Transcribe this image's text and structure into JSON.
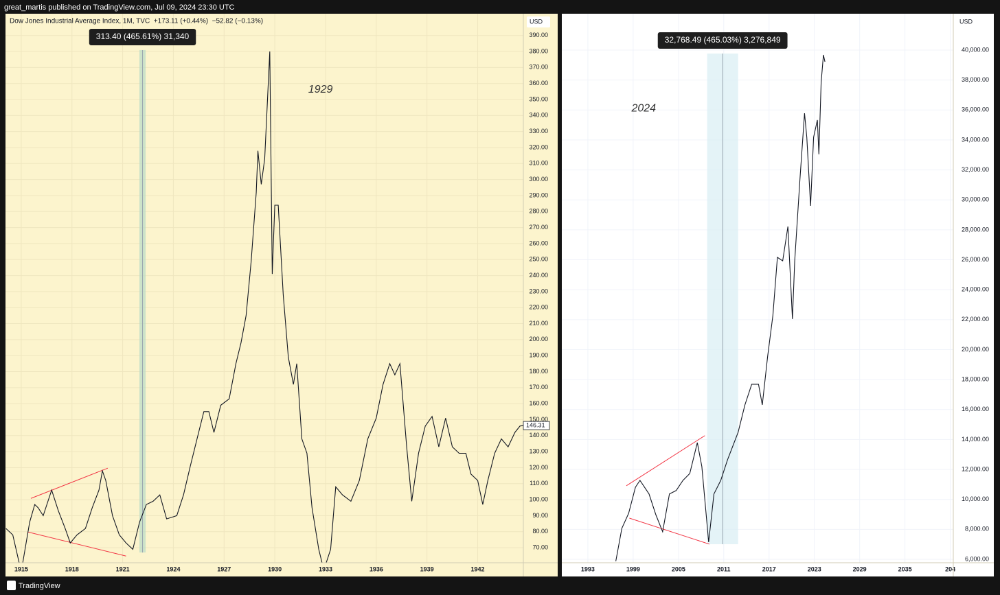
{
  "header": {
    "publisher": "great_martis published on TradingView.com, Jul 09, 2024 23:30 UTC",
    "legend": "Dow Jones Industrial Average Index, 1M, TVC  +173.11 (+0.44%)  −52.82 (−0.13%)"
  },
  "footer": {
    "brand": "TradingView"
  },
  "chart_data": [
    {
      "type": "line",
      "background": "#fcf4cd",
      "grid": true,
      "grid_color": "#efe6bf",
      "currency": "USD",
      "xlim": [
        1914.07,
        1944.7
      ],
      "ylim": [
        60.6,
        403.6
      ],
      "xticks": [
        1915,
        1918,
        1921,
        1924,
        1927,
        1930,
        1933,
        1936,
        1939,
        1942
      ],
      "yticks": [
        {
          "value": 70,
          "label": "70.00"
        },
        {
          "value": 80,
          "label": "80.00"
        },
        {
          "value": 90,
          "label": "90.00"
        },
        {
          "value": 100,
          "label": "100.00"
        },
        {
          "value": 110,
          "label": "110.00"
        },
        {
          "value": 120,
          "label": "120.00"
        },
        {
          "value": 130,
          "label": "130.00"
        },
        {
          "value": 140,
          "label": "140.00"
        },
        {
          "value": 150,
          "label": "150.00"
        },
        {
          "value": 160,
          "label": "160.00"
        },
        {
          "value": 170,
          "label": "170.00"
        },
        {
          "value": 180,
          "label": "180.00"
        },
        {
          "value": 190,
          "label": "190.00"
        },
        {
          "value": 200,
          "label": "200.00"
        },
        {
          "value": 210,
          "label": "210.00"
        },
        {
          "value": 220,
          "label": "220.00"
        },
        {
          "value": 230,
          "label": "230.00"
        },
        {
          "value": 240,
          "label": "240.00"
        },
        {
          "value": 250,
          "label": "250.00"
        },
        {
          "value": 260,
          "label": "260.00"
        },
        {
          "value": 270,
          "label": "270.00"
        },
        {
          "value": 280,
          "label": "280.00"
        },
        {
          "value": 290,
          "label": "290.00"
        },
        {
          "value": 300,
          "label": "300.00"
        },
        {
          "value": 310,
          "label": "310.00"
        },
        {
          "value": 320,
          "label": "320.00"
        },
        {
          "value": 330,
          "label": "330.00"
        },
        {
          "value": 340,
          "label": "340.00"
        },
        {
          "value": 350,
          "label": "350.00"
        },
        {
          "value": 360,
          "label": "360.00"
        },
        {
          "value": 370,
          "label": "370.00"
        },
        {
          "value": 380,
          "label": "380.00"
        },
        {
          "value": 390,
          "label": "390.00"
        }
      ],
      "x": [
        1914.1,
        1914.5,
        1915.0,
        1915.5,
        1915.8,
        1916.0,
        1916.3,
        1916.8,
        1917.2,
        1917.6,
        1917.9,
        1918.3,
        1918.8,
        1919.2,
        1919.6,
        1919.8,
        1920.0,
        1920.4,
        1920.8,
        1921.2,
        1921.6,
        1922.0,
        1922.4,
        1922.8,
        1923.2,
        1923.6,
        1924.2,
        1924.6,
        1925.0,
        1925.4,
        1925.8,
        1926.1,
        1926.4,
        1926.8,
        1927.3,
        1927.7,
        1928.0,
        1928.3,
        1928.6,
        1928.9,
        1929.0,
        1929.2,
        1929.4,
        1929.7,
        1929.85,
        1930.0,
        1930.2,
        1930.5,
        1930.8,
        1931.1,
        1931.3,
        1931.6,
        1931.9,
        1932.2,
        1932.6,
        1932.9,
        1933.3,
        1933.6,
        1934.0,
        1934.5,
        1935.0,
        1935.5,
        1936.0,
        1936.4,
        1936.8,
        1937.1,
        1937.4,
        1937.8,
        1938.1,
        1938.5,
        1938.9,
        1939.3,
        1939.7,
        1940.1,
        1940.5,
        1940.9,
        1941.3,
        1941.6,
        1942.0,
        1942.3,
        1942.6,
        1943.0,
        1943.4,
        1943.8,
        1944.2,
        1944.5,
        1944.7
      ],
      "series": [
        {
          "color": "#131722",
          "values": [
            82,
            78,
            55,
            86,
            97,
            95,
            90,
            106,
            93,
            82,
            73,
            78,
            82,
            95,
            106,
            118,
            112,
            90,
            78,
            73,
            69,
            86,
            97,
            99,
            103,
            88,
            90,
            103,
            121,
            138,
            155,
            155,
            142,
            159,
            163,
            185,
            198,
            215,
            249,
            292,
            318,
            297,
            313,
            380,
            241,
            284,
            284,
            228,
            189,
            172,
            185,
            138,
            129,
            95,
            69,
            56,
            69,
            108,
            103,
            99,
            112,
            138,
            151,
            172,
            185,
            178,
            185,
            133,
            99,
            129,
            146,
            152,
            133,
            151,
            133,
            129,
            129,
            116,
            112,
            97,
            112,
            129,
            138,
            133,
            142,
            146,
            146.31
          ]
        }
      ],
      "last_price": 146.31,
      "measure": {
        "label": "313.40 (465.61%) 31,340",
        "color": "#b9dcc8",
        "from": [
          1921.99,
          67
        ],
        "to": [
          1922.36,
          380.9
        ]
      },
      "trend_lines": {
        "color": "#f23645",
        "lines": [
          {
            "from": [
              1915.57,
              100.8
            ],
            "to": [
              1920.12,
              119.7
            ]
          },
          {
            "from": [
              1915.4,
              79.8
            ],
            "to": [
              1921.2,
              64.8
            ]
          }
        ]
      },
      "annotations": [
        {
          "text": "1929",
          "x": 1932.7,
          "y": 356
        }
      ]
    },
    {
      "type": "line",
      "background": "#ffffff",
      "grid": true,
      "grid_color": "#f0f3fa",
      "currency": "USD",
      "xlim": [
        1989.55,
        2041.4
      ],
      "ylim": [
        5771,
        42428
      ],
      "xticks": [
        1993,
        1999,
        2005,
        2011,
        2017,
        2023,
        2029,
        2035,
        {
          "value": 2041,
          "label": "204"
        }
      ],
      "yticks": [
        {
          "value": 6000,
          "label": "6,000.00"
        },
        {
          "value": 8000,
          "label": "8,000.00"
        },
        {
          "value": 10000,
          "label": "10,000.00"
        },
        {
          "value": 12000,
          "label": "12,000.00"
        },
        {
          "value": 14000,
          "label": "14,000.00"
        },
        {
          "value": 16000,
          "label": "16,000.00"
        },
        {
          "value": 18000,
          "label": "18,000.00"
        },
        {
          "value": 20000,
          "label": "20,000.00"
        },
        {
          "value": 22000,
          "label": "22,000.00"
        },
        {
          "value": 24000,
          "label": "24,000.00"
        },
        {
          "value": 26000,
          "label": "26,000.00"
        },
        {
          "value": 28000,
          "label": "28,000.00"
        },
        {
          "value": 30000,
          "label": "30,000.00"
        },
        {
          "value": 32000,
          "label": "32,000.00"
        },
        {
          "value": 34000,
          "label": "34,000.00"
        },
        {
          "value": 36000,
          "label": "36,000.00"
        },
        {
          "value": 38000,
          "label": "38,000.00"
        },
        {
          "value": 40000,
          "label": "40,000.00"
        }
      ],
      "x": [
        1996.7,
        1997.5,
        1998.4,
        1999.3,
        1999.9,
        2001.1,
        2002.0,
        2002.9,
        2003.8,
        2004.7,
        2005.6,
        2006.5,
        2007.5,
        2008.1,
        2009.0,
        2009.7,
        2010.6,
        2011.5,
        2012.9,
        2013.8,
        2014.7,
        2015.6,
        2016.1,
        2016.8,
        2017.5,
        2018.1,
        2018.8,
        2019.5,
        2020.1,
        2020.4,
        2021.1,
        2021.7,
        2022.0,
        2022.5,
        2022.9,
        2023.4,
        2023.6,
        2023.9,
        2024.2,
        2024.4
      ],
      "series": [
        {
          "color": "#131722",
          "values": [
            5870,
            8065,
            9070,
            10810,
            11270,
            10360,
            8980,
            7840,
            10360,
            10590,
            11270,
            11730,
            13790,
            12190,
            7150,
            10360,
            11270,
            12650,
            14480,
            16310,
            17690,
            17690,
            16310,
            19520,
            22270,
            26160,
            25930,
            28220,
            22040,
            25930,
            31430,
            35780,
            34180,
            29600,
            34180,
            35330,
            33040,
            37850,
            39680,
            39220
          ]
        }
      ],
      "measure": {
        "label": "32,768.49 (465.03%) 3,276,849",
        "color": "#d9eef3",
        "from": [
          2008.8,
          7010
        ],
        "to": [
          2012.9,
          39770
        ]
      },
      "trend_lines": {
        "color": "#f23645",
        "lines": [
          {
            "from": [
              1998.1,
              10910
            ],
            "to": [
              2008.5,
              14260
            ]
          },
          {
            "from": [
              1998.5,
              8750
            ],
            "to": [
              2009.1,
              7010
            ]
          }
        ]
      },
      "annotations": [
        {
          "text": "2024",
          "x": 2000.4,
          "y": 36100
        }
      ]
    }
  ]
}
